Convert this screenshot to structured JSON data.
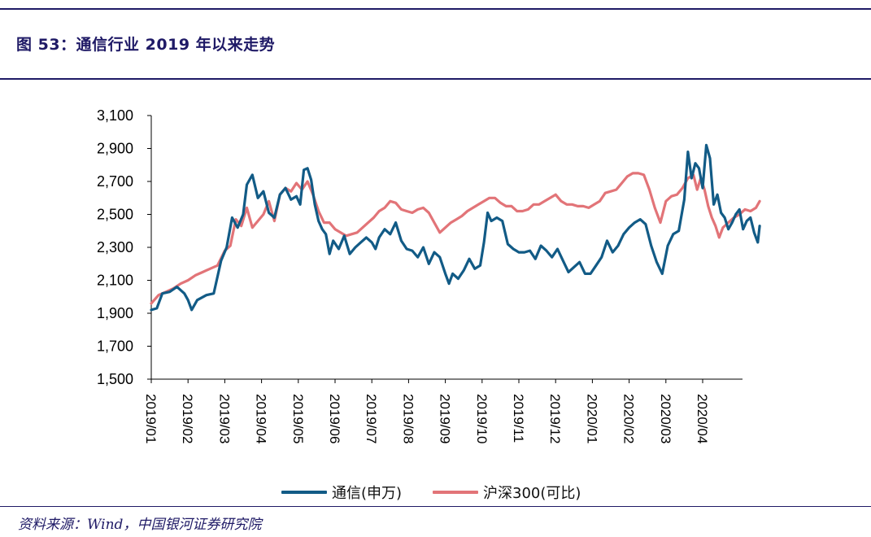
{
  "title": "图 53：通信行业 2019 年以来走势",
  "source": "资料来源：Wind，中国银河证券研究院",
  "colors": {
    "rule": "#1f1a66",
    "series_telecom": "#125b86",
    "series_hs300": "#e27478",
    "axis": "#000000"
  },
  "chart_data": {
    "type": "line",
    "x_tick_labels": [
      "2019/01",
      "2019/02",
      "2019/03",
      "2019/04",
      "2019/05",
      "2019/06",
      "2019/07",
      "2019/08",
      "2019/09",
      "2019/10",
      "2019/11",
      "2019/12",
      "2020/01",
      "2020/02",
      "2020/03",
      "2020/04"
    ],
    "y_tick_labels": [
      "3,100",
      "2,900",
      "2,700",
      "2,500",
      "2,300",
      "2,100",
      "1,900",
      "1,700",
      "1,500"
    ],
    "ylim": [
      1500,
      3100
    ],
    "legend_position": "bottom",
    "grid": false,
    "series": [
      {
        "name": "通信(申万)",
        "color": "#125b86",
        "points": [
          [
            0,
            1920
          ],
          [
            0.15,
            1930
          ],
          [
            0.3,
            2020
          ],
          [
            0.5,
            2030
          ],
          [
            0.7,
            2060
          ],
          [
            0.9,
            2020
          ],
          [
            1.0,
            1980
          ],
          [
            1.1,
            1920
          ],
          [
            1.25,
            1980
          ],
          [
            1.5,
            2010
          ],
          [
            1.7,
            2020
          ],
          [
            1.9,
            2220
          ],
          [
            2.05,
            2300
          ],
          [
            2.2,
            2480
          ],
          [
            2.35,
            2420
          ],
          [
            2.5,
            2500
          ],
          [
            2.6,
            2680
          ],
          [
            2.75,
            2740
          ],
          [
            2.9,
            2600
          ],
          [
            3.05,
            2640
          ],
          [
            3.2,
            2510
          ],
          [
            3.35,
            2480
          ],
          [
            3.5,
            2620
          ],
          [
            3.65,
            2660
          ],
          [
            3.8,
            2590
          ],
          [
            3.95,
            2610
          ],
          [
            4.05,
            2560
          ],
          [
            4.15,
            2770
          ],
          [
            4.25,
            2780
          ],
          [
            4.35,
            2710
          ],
          [
            4.45,
            2560
          ],
          [
            4.55,
            2460
          ],
          [
            4.65,
            2410
          ],
          [
            4.75,
            2380
          ],
          [
            4.85,
            2260
          ],
          [
            4.95,
            2340
          ],
          [
            5.1,
            2290
          ],
          [
            5.25,
            2370
          ],
          [
            5.4,
            2260
          ],
          [
            5.55,
            2300
          ],
          [
            5.7,
            2330
          ],
          [
            5.85,
            2360
          ],
          [
            6.0,
            2330
          ],
          [
            6.1,
            2290
          ],
          [
            6.2,
            2360
          ],
          [
            6.35,
            2410
          ],
          [
            6.5,
            2380
          ],
          [
            6.65,
            2450
          ],
          [
            6.8,
            2340
          ],
          [
            6.95,
            2290
          ],
          [
            7.1,
            2280
          ],
          [
            7.25,
            2240
          ],
          [
            7.4,
            2300
          ],
          [
            7.55,
            2200
          ],
          [
            7.7,
            2270
          ],
          [
            7.85,
            2240
          ],
          [
            8.0,
            2140
          ],
          [
            8.1,
            2080
          ],
          [
            8.2,
            2140
          ],
          [
            8.35,
            2110
          ],
          [
            8.5,
            2160
          ],
          [
            8.65,
            2230
          ],
          [
            8.8,
            2170
          ],
          [
            8.95,
            2190
          ],
          [
            9.05,
            2330
          ],
          [
            9.15,
            2510
          ],
          [
            9.25,
            2460
          ],
          [
            9.4,
            2480
          ],
          [
            9.55,
            2460
          ],
          [
            9.7,
            2320
          ],
          [
            9.85,
            2290
          ],
          [
            10.0,
            2270
          ],
          [
            10.15,
            2270
          ],
          [
            10.3,
            2280
          ],
          [
            10.45,
            2230
          ],
          [
            10.6,
            2310
          ],
          [
            10.75,
            2280
          ],
          [
            10.9,
            2240
          ],
          [
            11.05,
            2290
          ],
          [
            11.2,
            2220
          ],
          [
            11.35,
            2150
          ],
          [
            11.5,
            2180
          ],
          [
            11.65,
            2210
          ],
          [
            11.8,
            2140
          ],
          [
            11.95,
            2140
          ],
          [
            12.1,
            2190
          ],
          [
            12.25,
            2240
          ],
          [
            12.4,
            2340
          ],
          [
            12.55,
            2270
          ],
          [
            12.7,
            2310
          ],
          [
            12.85,
            2380
          ],
          [
            13.0,
            2420
          ],
          [
            13.15,
            2450
          ],
          [
            13.3,
            2470
          ],
          [
            13.45,
            2440
          ],
          [
            13.6,
            2310
          ],
          [
            13.75,
            2210
          ],
          [
            13.9,
            2140
          ],
          [
            14.05,
            2310
          ],
          [
            14.2,
            2380
          ],
          [
            14.35,
            2400
          ],
          [
            14.5,
            2590
          ],
          [
            14.6,
            2880
          ],
          [
            14.7,
            2720
          ],
          [
            14.8,
            2810
          ],
          [
            14.9,
            2780
          ],
          [
            15.0,
            2660
          ],
          [
            15.1,
            2920
          ],
          [
            15.2,
            2840
          ],
          [
            15.3,
            2560
          ],
          [
            15.4,
            2620
          ],
          [
            15.5,
            2510
          ],
          [
            15.6,
            2480
          ],
          [
            15.7,
            2410
          ],
          [
            15.8,
            2450
          ],
          [
            15.9,
            2500
          ],
          [
            16.0,
            2530
          ],
          [
            16.1,
            2410
          ],
          [
            16.2,
            2460
          ],
          [
            16.3,
            2480
          ],
          [
            16.4,
            2390
          ],
          [
            16.5,
            2330
          ],
          [
            16.55,
            2430
          ]
        ]
      },
      {
        "name": "沪深300(可比)",
        "color": "#e27478",
        "points": [
          [
            0,
            1960
          ],
          [
            0.2,
            2010
          ],
          [
            0.4,
            2030
          ],
          [
            0.6,
            2050
          ],
          [
            0.8,
            2080
          ],
          [
            1.0,
            2100
          ],
          [
            1.2,
            2130
          ],
          [
            1.4,
            2150
          ],
          [
            1.6,
            2170
          ],
          [
            1.8,
            2190
          ],
          [
            2.0,
            2280
          ],
          [
            2.15,
            2310
          ],
          [
            2.3,
            2470
          ],
          [
            2.45,
            2430
          ],
          [
            2.6,
            2540
          ],
          [
            2.75,
            2420
          ],
          [
            2.9,
            2460
          ],
          [
            3.05,
            2500
          ],
          [
            3.2,
            2580
          ],
          [
            3.35,
            2460
          ],
          [
            3.5,
            2620
          ],
          [
            3.65,
            2660
          ],
          [
            3.8,
            2640
          ],
          [
            3.95,
            2690
          ],
          [
            4.1,
            2650
          ],
          [
            4.25,
            2700
          ],
          [
            4.4,
            2620
          ],
          [
            4.55,
            2520
          ],
          [
            4.7,
            2450
          ],
          [
            4.85,
            2450
          ],
          [
            5.0,
            2410
          ],
          [
            5.15,
            2390
          ],
          [
            5.3,
            2370
          ],
          [
            5.45,
            2380
          ],
          [
            5.6,
            2390
          ],
          [
            5.75,
            2420
          ],
          [
            5.9,
            2450
          ],
          [
            6.05,
            2480
          ],
          [
            6.2,
            2520
          ],
          [
            6.35,
            2540
          ],
          [
            6.5,
            2580
          ],
          [
            6.65,
            2570
          ],
          [
            6.8,
            2530
          ],
          [
            6.95,
            2520
          ],
          [
            7.1,
            2510
          ],
          [
            7.25,
            2530
          ],
          [
            7.4,
            2540
          ],
          [
            7.55,
            2510
          ],
          [
            7.7,
            2450
          ],
          [
            7.85,
            2390
          ],
          [
            8.0,
            2420
          ],
          [
            8.15,
            2450
          ],
          [
            8.3,
            2470
          ],
          [
            8.45,
            2490
          ],
          [
            8.6,
            2520
          ],
          [
            8.75,
            2540
          ],
          [
            8.9,
            2560
          ],
          [
            9.05,
            2580
          ],
          [
            9.2,
            2600
          ],
          [
            9.35,
            2600
          ],
          [
            9.5,
            2570
          ],
          [
            9.65,
            2550
          ],
          [
            9.8,
            2550
          ],
          [
            9.95,
            2520
          ],
          [
            10.1,
            2520
          ],
          [
            10.25,
            2530
          ],
          [
            10.4,
            2560
          ],
          [
            10.55,
            2560
          ],
          [
            10.7,
            2580
          ],
          [
            10.85,
            2600
          ],
          [
            11.0,
            2620
          ],
          [
            11.15,
            2580
          ],
          [
            11.3,
            2560
          ],
          [
            11.45,
            2560
          ],
          [
            11.6,
            2550
          ],
          [
            11.75,
            2550
          ],
          [
            11.9,
            2540
          ],
          [
            12.05,
            2560
          ],
          [
            12.2,
            2580
          ],
          [
            12.35,
            2630
          ],
          [
            12.5,
            2640
          ],
          [
            12.65,
            2650
          ],
          [
            12.8,
            2690
          ],
          [
            12.95,
            2730
          ],
          [
            13.1,
            2750
          ],
          [
            13.25,
            2750
          ],
          [
            13.4,
            2740
          ],
          [
            13.55,
            2650
          ],
          [
            13.7,
            2540
          ],
          [
            13.85,
            2450
          ],
          [
            14.0,
            2580
          ],
          [
            14.15,
            2610
          ],
          [
            14.3,
            2620
          ],
          [
            14.45,
            2660
          ],
          [
            14.6,
            2720
          ],
          [
            14.75,
            2740
          ],
          [
            14.85,
            2650
          ],
          [
            14.95,
            2720
          ],
          [
            15.05,
            2650
          ],
          [
            15.15,
            2550
          ],
          [
            15.25,
            2480
          ],
          [
            15.35,
            2430
          ],
          [
            15.45,
            2360
          ],
          [
            15.55,
            2420
          ],
          [
            15.7,
            2450
          ],
          [
            15.85,
            2480
          ],
          [
            16.0,
            2500
          ],
          [
            16.15,
            2530
          ],
          [
            16.3,
            2520
          ],
          [
            16.45,
            2540
          ],
          [
            16.55,
            2580
          ]
        ]
      }
    ]
  }
}
